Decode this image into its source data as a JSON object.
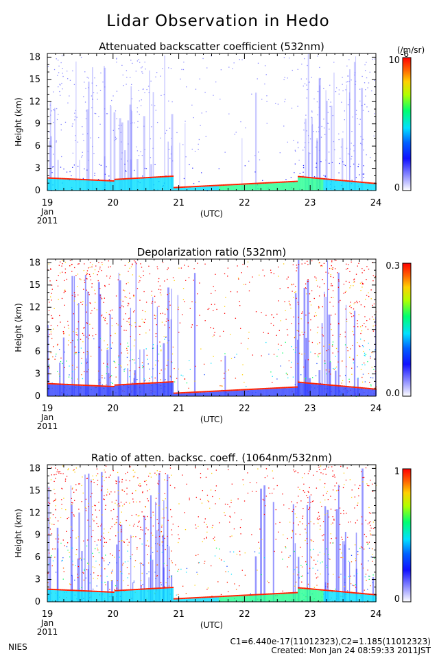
{
  "figure": {
    "title": "Lidar Observation in Hedo",
    "footer_left": "NIES",
    "footer_constants": "C1=6.440e-17(11012323),C2=1.185(11012323)",
    "footer_created": "Created: Mon Jan 24 08:59:33 2011JST"
  },
  "chart_data": [
    {
      "type": "heatmap",
      "title": "Attenuated backscatter coefficient (532nm)",
      "ylabel": "Height (km)",
      "xlabel": "(UTC)",
      "x_ticks": [
        "19",
        "20",
        "21",
        "22",
        "23",
        "24"
      ],
      "x_date_label": [
        "Jan",
        "2011"
      ],
      "xlim": [
        19,
        24
      ],
      "y_ticks": [
        "0",
        "3",
        "6",
        "9",
        "12",
        "15",
        "18"
      ],
      "ylim": [
        0,
        18.5
      ],
      "colorbar": {
        "min_label": "0",
        "max_label": "10",
        "unit": "(/m/sr)",
        "exponent": "-6"
      },
      "colormap": [
        "#ffffff",
        "#5a5aff",
        "#0000e0",
        "#00d8ff",
        "#00ff80",
        "#ffff00",
        "#ff8000",
        "#ff0000"
      ]
    },
    {
      "type": "heatmap",
      "title": "Depolarization ratio (532nm)",
      "ylabel": "Height (km)",
      "xlabel": "(UTC)",
      "x_ticks": [
        "19",
        "20",
        "21",
        "22",
        "23",
        "24"
      ],
      "x_date_label": [
        "Jan",
        "2011"
      ],
      "xlim": [
        19,
        24
      ],
      "y_ticks": [
        "0",
        "3",
        "6",
        "9",
        "12",
        "15",
        "18"
      ],
      "ylim": [
        0,
        18.5
      ],
      "colorbar": {
        "min_label": "0.0",
        "max_label": "0.3",
        "unit": "",
        "exponent": ""
      },
      "colormap": [
        "#ffffff",
        "#5a5aff",
        "#0000e0",
        "#00d8ff",
        "#00ff80",
        "#ffff00",
        "#ff8000",
        "#ff0000"
      ]
    },
    {
      "type": "heatmap",
      "title": "Ratio of atten. backsc. coeff. (1064nm/532nm)",
      "ylabel": "Height (km)",
      "xlabel": "(UTC)",
      "x_ticks": [
        "19",
        "20",
        "21",
        "22",
        "23",
        "24"
      ],
      "x_date_label": [
        "Jan",
        "2011"
      ],
      "xlim": [
        19,
        24
      ],
      "y_ticks": [
        "0",
        "3",
        "6",
        "9",
        "12",
        "15",
        "18"
      ],
      "ylim": [
        0,
        18.5
      ],
      "colorbar": {
        "min_label": "0",
        "max_label": "1",
        "unit": "",
        "exponent": ""
      },
      "colormap": [
        "#ffffff",
        "#5a5aff",
        "#0000e0",
        "#00d8ff",
        "#00ff80",
        "#ffff00",
        "#ff8000",
        "#ff0000"
      ]
    }
  ]
}
